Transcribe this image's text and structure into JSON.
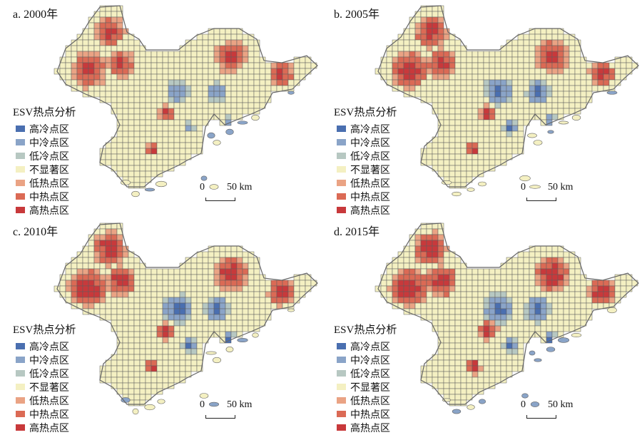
{
  "legend": {
    "title": "ESV热点分析",
    "items": [
      {
        "label": "高冷点区",
        "color": "#4a6fb0"
      },
      {
        "label": "中冷点区",
        "color": "#8aa4c8"
      },
      {
        "label": "低冷点区",
        "color": "#b7c8c2"
      },
      {
        "label": "不显著区",
        "color": "#f4f0c2"
      },
      {
        "label": "低热点区",
        "color": "#eaa384"
      },
      {
        "label": "中热点区",
        "color": "#db6a55"
      },
      {
        "label": "高热点区",
        "color": "#c8393b"
      }
    ]
  },
  "scalebar": {
    "zero": "0",
    "distance": "50 km"
  },
  "colors": {
    "grid": "#5f5f5f",
    "outline": "#666666"
  },
  "panels": [
    {
      "label": "a. 2000年",
      "seed": 11,
      "hot": 0.45,
      "cold": 0.22
    },
    {
      "label": "b. 2005年",
      "seed": 23,
      "hot": 0.55,
      "cold": 0.4
    },
    {
      "label": "c. 2010年",
      "seed": 37,
      "hot": 0.62,
      "cold": 0.48
    },
    {
      "label": "d. 2015年",
      "seed": 51,
      "hot": 0.66,
      "cold": 0.5
    }
  ]
}
